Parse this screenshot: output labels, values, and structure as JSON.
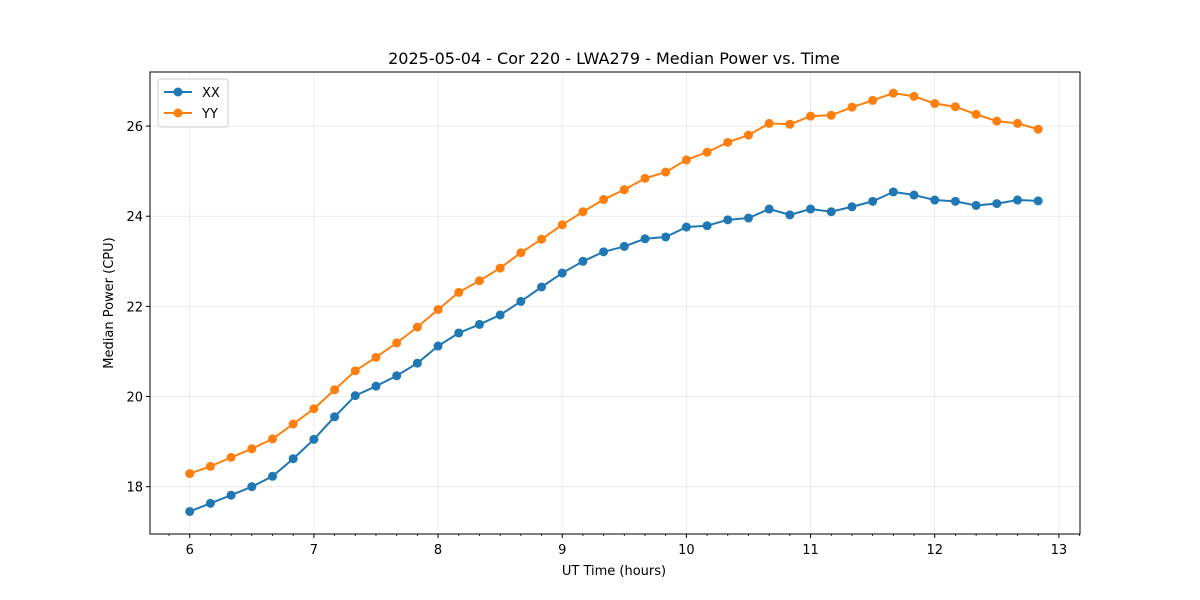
{
  "chart_data": {
    "type": "line",
    "title": "2025-05-04 - Cor 220 - LWA279 - Median Power vs. Time",
    "xlabel": "UT Time (hours)",
    "ylabel": "Median Power (CPU)",
    "xlim": [
      5.68,
      13.17
    ],
    "ylim": [
      16.95,
      27.2
    ],
    "xticks": [
      6,
      7,
      8,
      9,
      10,
      11,
      12,
      13
    ],
    "yticks": [
      18,
      20,
      22,
      24,
      26
    ],
    "grid": true,
    "legend_position": "top-left",
    "x": [
      6.0,
      6.1667,
      6.3333,
      6.5,
      6.6667,
      6.8333,
      7.0,
      7.1667,
      7.3333,
      7.5,
      7.6667,
      7.8333,
      8.0,
      8.1667,
      8.3333,
      8.5,
      8.6667,
      8.8333,
      9.0,
      9.1667,
      9.3333,
      9.5,
      9.6667,
      9.8333,
      10.0,
      10.1667,
      10.3333,
      10.5,
      10.6667,
      10.8333,
      11.0,
      11.1667,
      11.3333,
      11.5,
      11.6667,
      11.8333,
      12.0,
      12.1667,
      12.3333,
      12.5,
      12.6667,
      12.8333
    ],
    "series": [
      {
        "name": "XX",
        "color": "#1f77b4",
        "values": [
          17.45,
          17.63,
          17.81,
          18.0,
          18.23,
          18.62,
          19.05,
          19.55,
          20.02,
          20.23,
          20.46,
          20.74,
          21.12,
          21.41,
          21.6,
          21.81,
          22.11,
          22.43,
          22.74,
          23.0,
          23.21,
          23.33,
          23.5,
          23.54,
          23.76,
          23.79,
          23.92,
          23.96,
          24.16,
          24.03,
          24.16,
          24.1,
          24.21,
          24.33,
          24.54,
          24.47,
          24.36,
          24.33,
          24.24,
          24.28,
          24.36,
          24.34
        ]
      },
      {
        "name": "YY",
        "color": "#ff7f0e",
        "values": [
          18.29,
          18.45,
          18.65,
          18.84,
          19.06,
          19.39,
          19.73,
          20.15,
          20.57,
          20.87,
          21.19,
          21.54,
          21.93,
          22.31,
          22.57,
          22.85,
          23.19,
          23.49,
          23.81,
          24.1,
          24.37,
          24.59,
          24.84,
          24.98,
          25.25,
          25.42,
          25.64,
          25.8,
          26.06,
          26.04,
          26.22,
          26.24,
          26.42,
          26.57,
          26.73,
          26.66,
          26.5,
          26.43,
          26.26,
          26.11,
          26.06,
          25.93
        ]
      }
    ]
  }
}
